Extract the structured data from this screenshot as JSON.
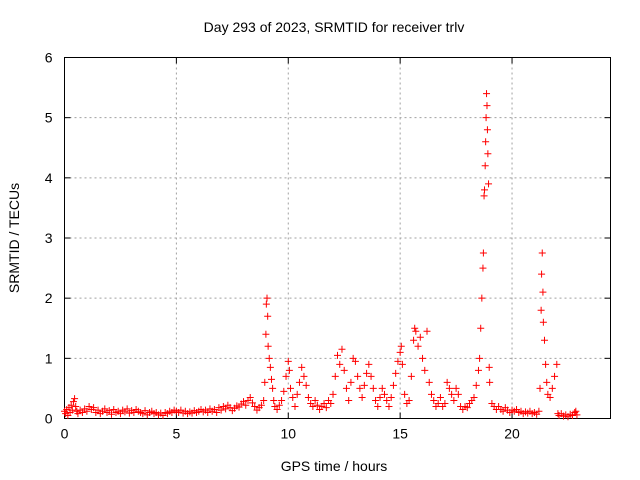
{
  "chart_data": {
    "type": "scatter",
    "title": "Day 293 of 2023, SRMTID for receiver trlv",
    "xlabel": "GPS time / hours",
    "ylabel": "SRMTID / TECUs",
    "xlim": [
      0,
      24.4
    ],
    "ylim": [
      0,
      6
    ],
    "xticks": [
      0,
      5,
      10,
      15,
      20
    ],
    "yticks": [
      0,
      1,
      2,
      3,
      4,
      5,
      6
    ],
    "grid": true,
    "marker": "+",
    "series": [
      {
        "name": "SRMTID",
        "color": "#ff0000",
        "points": [
          [
            0.0,
            0.12
          ],
          [
            0.05,
            0.08
          ],
          [
            0.1,
            0.15
          ],
          [
            0.15,
            0.05
          ],
          [
            0.2,
            0.18
          ],
          [
            0.25,
            0.1
          ],
          [
            0.3,
            0.22
          ],
          [
            0.35,
            0.14
          ],
          [
            0.4,
            0.28
          ],
          [
            0.45,
            0.33
          ],
          [
            0.5,
            0.2
          ],
          [
            0.55,
            0.12
          ],
          [
            0.6,
            0.08
          ],
          [
            0.7,
            0.14
          ],
          [
            0.8,
            0.1
          ],
          [
            0.9,
            0.16
          ],
          [
            1.0,
            0.12
          ],
          [
            1.1,
            0.2
          ],
          [
            1.2,
            0.15
          ],
          [
            1.3,
            0.18
          ],
          [
            1.4,
            0.1
          ],
          [
            1.5,
            0.14
          ],
          [
            1.6,
            0.08
          ],
          [
            1.7,
            0.12
          ],
          [
            1.8,
            0.16
          ],
          [
            1.9,
            0.1
          ],
          [
            2.0,
            0.13
          ],
          [
            2.1,
            0.07
          ],
          [
            2.2,
            0.15
          ],
          [
            2.3,
            0.1
          ],
          [
            2.4,
            0.12
          ],
          [
            2.5,
            0.08
          ],
          [
            2.6,
            0.14
          ],
          [
            2.7,
            0.11
          ],
          [
            2.8,
            0.16
          ],
          [
            2.9,
            0.09
          ],
          [
            3.0,
            0.13
          ],
          [
            3.1,
            0.1
          ],
          [
            3.2,
            0.15
          ],
          [
            3.3,
            0.12
          ],
          [
            3.4,
            0.1
          ],
          [
            3.5,
            0.08
          ],
          [
            3.6,
            0.13
          ],
          [
            3.7,
            0.06
          ],
          [
            3.8,
            0.1
          ],
          [
            3.9,
            0.12
          ],
          [
            4.0,
            0.08
          ],
          [
            4.1,
            0.1
          ],
          [
            4.2,
            0.06
          ],
          [
            4.3,
            0.09
          ],
          [
            4.4,
            0.05
          ],
          [
            4.5,
            0.1
          ],
          [
            4.6,
            0.08
          ],
          [
            4.7,
            0.12
          ],
          [
            4.8,
            0.1
          ],
          [
            4.9,
            0.14
          ],
          [
            5.0,
            0.12
          ],
          [
            5.1,
            0.1
          ],
          [
            5.2,
            0.14
          ],
          [
            5.3,
            0.09
          ],
          [
            5.4,
            0.12
          ],
          [
            5.5,
            0.08
          ],
          [
            5.6,
            0.11
          ],
          [
            5.7,
            0.09
          ],
          [
            5.8,
            0.13
          ],
          [
            5.9,
            0.1
          ],
          [
            6.0,
            0.12
          ],
          [
            6.1,
            0.15
          ],
          [
            6.2,
            0.11
          ],
          [
            6.3,
            0.14
          ],
          [
            6.4,
            0.1
          ],
          [
            6.5,
            0.16
          ],
          [
            6.6,
            0.12
          ],
          [
            6.7,
            0.15
          ],
          [
            6.8,
            0.1
          ],
          [
            6.9,
            0.18
          ],
          [
            7.0,
            0.14
          ],
          [
            7.1,
            0.2
          ],
          [
            7.2,
            0.16
          ],
          [
            7.3,
            0.22
          ],
          [
            7.4,
            0.18
          ],
          [
            7.5,
            0.13
          ],
          [
            7.6,
            0.17
          ],
          [
            7.7,
            0.21
          ],
          [
            7.8,
            0.19
          ],
          [
            7.9,
            0.24
          ],
          [
            8.0,
            0.28
          ],
          [
            8.1,
            0.22
          ],
          [
            8.2,
            0.3
          ],
          [
            8.3,
            0.35
          ],
          [
            8.4,
            0.26
          ],
          [
            8.5,
            0.2
          ],
          [
            8.6,
            0.14
          ],
          [
            8.7,
            0.18
          ],
          [
            8.8,
            0.22
          ],
          [
            8.9,
            0.3
          ],
          [
            8.95,
            0.6
          ],
          [
            9.0,
            1.4
          ],
          [
            9.02,
            1.9
          ],
          [
            9.05,
            2.0
          ],
          [
            9.08,
            1.7
          ],
          [
            9.1,
            1.2
          ],
          [
            9.15,
            1.0
          ],
          [
            9.2,
            0.85
          ],
          [
            9.25,
            0.65
          ],
          [
            9.3,
            0.5
          ],
          [
            9.35,
            0.3
          ],
          [
            9.4,
            0.2
          ],
          [
            9.5,
            0.15
          ],
          [
            9.6,
            0.22
          ],
          [
            9.7,
            0.3
          ],
          [
            9.8,
            0.45
          ],
          [
            9.9,
            0.7
          ],
          [
            10.0,
            0.95
          ],
          [
            10.05,
            0.8
          ],
          [
            10.1,
            0.5
          ],
          [
            10.2,
            0.35
          ],
          [
            10.3,
            0.2
          ],
          [
            10.4,
            0.4
          ],
          [
            10.5,
            0.6
          ],
          [
            10.6,
            0.85
          ],
          [
            10.7,
            0.7
          ],
          [
            10.8,
            0.55
          ],
          [
            10.9,
            0.35
          ],
          [
            11.0,
            0.25
          ],
          [
            11.1,
            0.2
          ],
          [
            11.2,
            0.3
          ],
          [
            11.3,
            0.22
          ],
          [
            11.4,
            0.15
          ],
          [
            11.5,
            0.2
          ],
          [
            11.6,
            0.25
          ],
          [
            11.7,
            0.18
          ],
          [
            11.8,
            0.3
          ],
          [
            11.9,
            0.25
          ],
          [
            12.0,
            0.4
          ],
          [
            12.1,
            0.7
          ],
          [
            12.2,
            1.05
          ],
          [
            12.3,
            0.9
          ],
          [
            12.4,
            1.15
          ],
          [
            12.5,
            0.8
          ],
          [
            12.6,
            0.5
          ],
          [
            12.7,
            0.3
          ],
          [
            12.8,
            0.6
          ],
          [
            12.9,
            1.0
          ],
          [
            13.0,
            0.95
          ],
          [
            13.1,
            0.7
          ],
          [
            13.2,
            0.5
          ],
          [
            13.3,
            0.35
          ],
          [
            13.4,
            0.55
          ],
          [
            13.5,
            0.75
          ],
          [
            13.6,
            0.9
          ],
          [
            13.7,
            0.7
          ],
          [
            13.8,
            0.5
          ],
          [
            13.9,
            0.3
          ],
          [
            14.0,
            0.2
          ],
          [
            14.1,
            0.35
          ],
          [
            14.2,
            0.5
          ],
          [
            14.3,
            0.4
          ],
          [
            14.4,
            0.3
          ],
          [
            14.5,
            0.2
          ],
          [
            14.6,
            0.35
          ],
          [
            14.7,
            0.55
          ],
          [
            14.8,
            0.75
          ],
          [
            14.9,
            0.95
          ],
          [
            15.0,
            1.1
          ],
          [
            15.05,
            1.2
          ],
          [
            15.1,
            0.9
          ],
          [
            15.2,
            0.4
          ],
          [
            15.3,
            0.25
          ],
          [
            15.4,
            0.3
          ],
          [
            15.5,
            0.7
          ],
          [
            15.6,
            1.3
          ],
          [
            15.65,
            1.5
          ],
          [
            15.7,
            1.45
          ],
          [
            15.8,
            1.2
          ],
          [
            15.9,
            1.35
          ],
          [
            16.0,
            1.0
          ],
          [
            16.1,
            0.8
          ],
          [
            16.2,
            1.45
          ],
          [
            16.3,
            0.6
          ],
          [
            16.4,
            0.4
          ],
          [
            16.5,
            0.3
          ],
          [
            16.6,
            0.2
          ],
          [
            16.7,
            0.25
          ],
          [
            16.8,
            0.35
          ],
          [
            16.9,
            0.2
          ],
          [
            17.0,
            0.25
          ],
          [
            17.1,
            0.6
          ],
          [
            17.2,
            0.5
          ],
          [
            17.3,
            0.4
          ],
          [
            17.4,
            0.3
          ],
          [
            17.5,
            0.5
          ],
          [
            17.6,
            0.4
          ],
          [
            17.7,
            0.2
          ],
          [
            17.8,
            0.15
          ],
          [
            17.9,
            0.2
          ],
          [
            18.0,
            0.18
          ],
          [
            18.1,
            0.25
          ],
          [
            18.2,
            0.3
          ],
          [
            18.3,
            0.35
          ],
          [
            18.4,
            0.55
          ],
          [
            18.5,
            0.8
          ],
          [
            18.55,
            1.0
          ],
          [
            18.6,
            1.5
          ],
          [
            18.65,
            2.0
          ],
          [
            18.7,
            2.5
          ],
          [
            18.72,
            2.75
          ],
          [
            18.75,
            3.7
          ],
          [
            18.77,
            3.8
          ],
          [
            18.8,
            4.2
          ],
          [
            18.82,
            4.6
          ],
          [
            18.84,
            5.0
          ],
          [
            18.86,
            5.4
          ],
          [
            18.88,
            5.2
          ],
          [
            18.9,
            4.8
          ],
          [
            18.92,
            4.4
          ],
          [
            18.95,
            3.9
          ],
          [
            18.98,
            0.85
          ],
          [
            19.0,
            0.6
          ],
          [
            19.1,
            0.25
          ],
          [
            19.2,
            0.2
          ],
          [
            19.3,
            0.15
          ],
          [
            19.4,
            0.2
          ],
          [
            19.5,
            0.15
          ],
          [
            19.6,
            0.12
          ],
          [
            19.7,
            0.18
          ],
          [
            19.8,
            0.14
          ],
          [
            19.9,
            0.1
          ],
          [
            20.0,
            0.14
          ],
          [
            20.1,
            0.12
          ],
          [
            20.2,
            0.15
          ],
          [
            20.3,
            0.1
          ],
          [
            20.4,
            0.12
          ],
          [
            20.5,
            0.08
          ],
          [
            20.6,
            0.11
          ],
          [
            20.7,
            0.09
          ],
          [
            20.8,
            0.12
          ],
          [
            20.9,
            0.08
          ],
          [
            21.0,
            0.1
          ],
          [
            21.1,
            0.07
          ],
          [
            21.2,
            0.12
          ],
          [
            21.25,
            0.5
          ],
          [
            21.3,
            1.8
          ],
          [
            21.32,
            2.4
          ],
          [
            21.35,
            2.75
          ],
          [
            21.38,
            2.1
          ],
          [
            21.4,
            1.6
          ],
          [
            21.45,
            1.3
          ],
          [
            21.5,
            0.9
          ],
          [
            21.55,
            0.6
          ],
          [
            21.6,
            0.4
          ],
          [
            21.7,
            0.35
          ],
          [
            21.8,
            0.5
          ],
          [
            21.9,
            0.7
          ],
          [
            22.0,
            0.9
          ],
          [
            22.05,
            0.08
          ],
          [
            22.1,
            0.05
          ],
          [
            22.2,
            0.08
          ],
          [
            22.3,
            0.04
          ],
          [
            22.4,
            0.06
          ],
          [
            22.5,
            0.03
          ],
          [
            22.6,
            0.07
          ],
          [
            22.7,
            0.05
          ],
          [
            22.8,
            0.1
          ],
          [
            22.85,
            0.12
          ],
          [
            22.9,
            0.06
          ]
        ]
      }
    ]
  }
}
